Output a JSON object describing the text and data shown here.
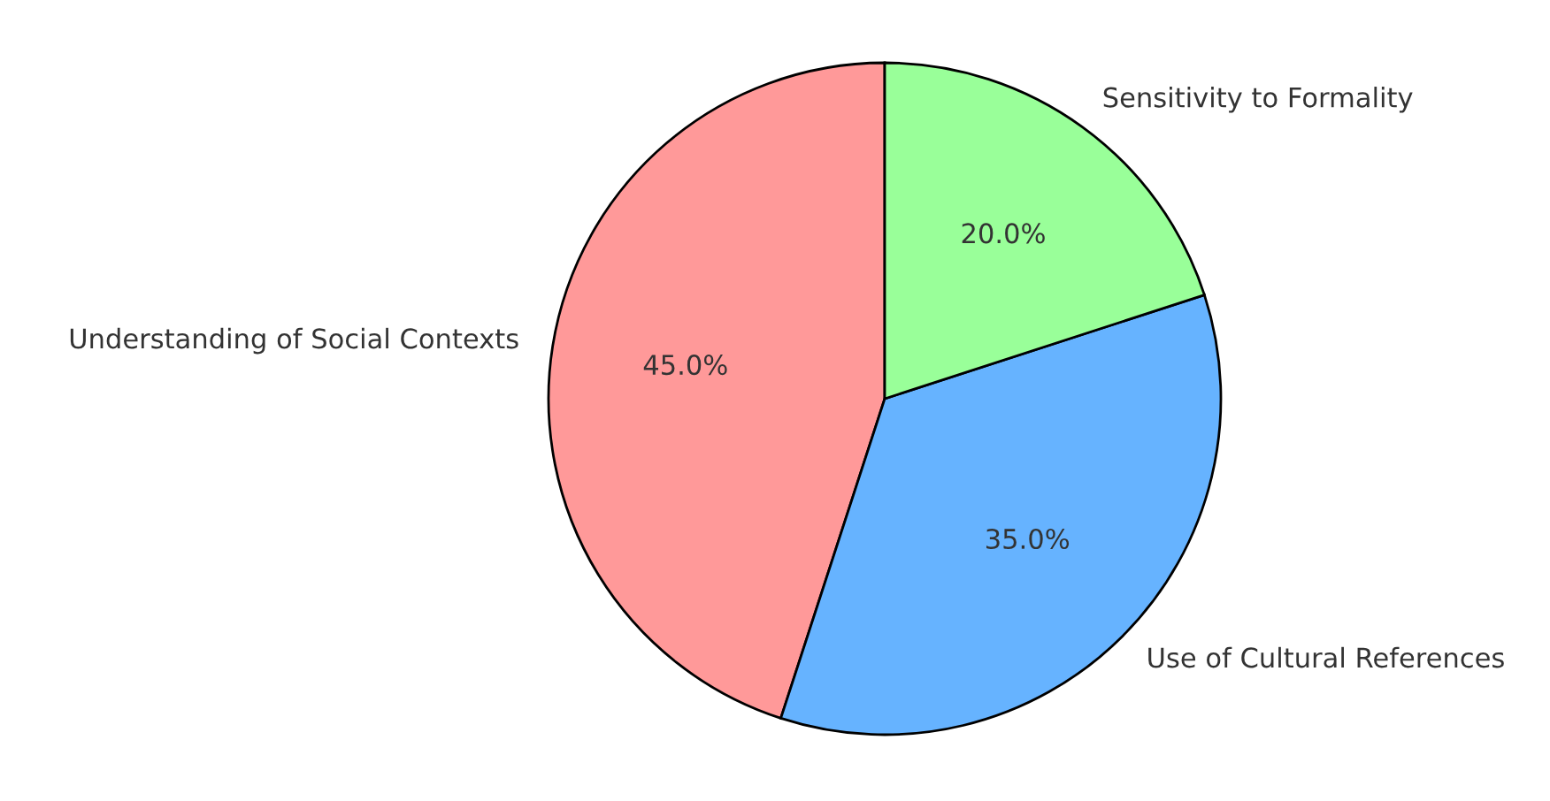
{
  "chart_data": {
    "type": "pie",
    "categories": [
      "Understanding of Social Contexts",
      "Use of Cultural References",
      "Sensitivity to Formality"
    ],
    "values": [
      45,
      35,
      20
    ],
    "colors": [
      "#ff9999",
      "#66b3ff",
      "#99ff99"
    ],
    "value_labels": [
      "45.0%",
      "35.0%",
      "20.0%"
    ]
  }
}
